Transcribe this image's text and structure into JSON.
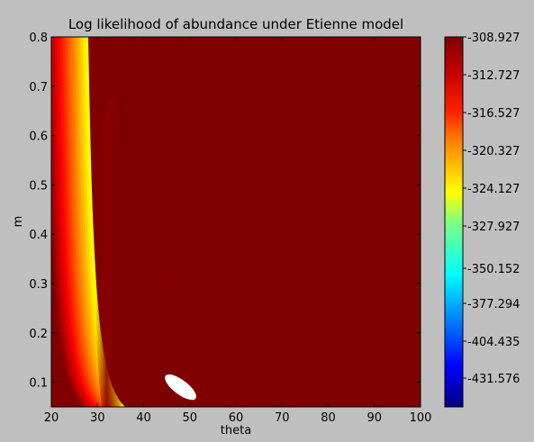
{
  "chart_data": {
    "type": "heatmap",
    "subtype": "filled-contour",
    "title": "Log likelihood of abundance under Etienne model",
    "xlabel": "theta",
    "ylabel": "m",
    "xlim": [
      20,
      100
    ],
    "ylim": [
      0.05,
      0.8
    ],
    "xticks": [
      20,
      30,
      40,
      50,
      60,
      70,
      80,
      90,
      100
    ],
    "yticks": [
      0.1,
      0.2,
      0.3,
      0.4,
      0.5,
      0.6,
      0.7,
      0.8
    ],
    "ytick_labels": [
      "0.1",
      "0.2",
      "0.3",
      "0.4",
      "0.5",
      "0.6",
      "0.7",
      "0.8"
    ],
    "maximum_region": {
      "theta": 48,
      "m": 0.09
    },
    "grid": false,
    "colormap": "jet",
    "colorbar": {
      "tick_labels": [
        "-308.927",
        "-312.727",
        "-316.527",
        "-320.327",
        "-324.127",
        "-327.927",
        "-350.152",
        "-377.294",
        "-404.435",
        "-431.576"
      ],
      "colors_top_to_bottom": [
        "#7f0000",
        "#b00000",
        "#e00000",
        "#ff2a00",
        "#ff6000",
        "#ffc000",
        "#dfff20",
        "#20ffdf",
        "#0040ff",
        "#00007f"
      ]
    }
  }
}
